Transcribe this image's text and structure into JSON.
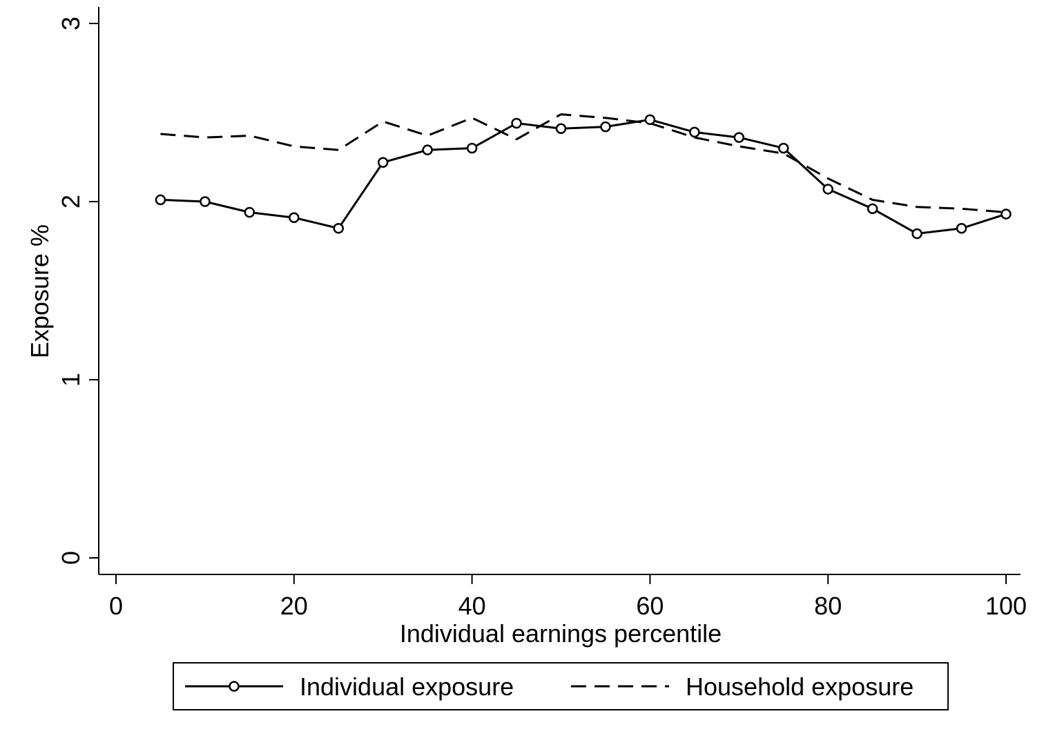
{
  "chart_data": {
    "type": "line",
    "title": "",
    "xlabel": "Individual earnings percentile",
    "ylabel": "Exposure %",
    "xlim": [
      0,
      100
    ],
    "ylim": [
      0,
      3
    ],
    "xticks": [
      0,
      20,
      40,
      60,
      80,
      100
    ],
    "yticks": [
      0,
      1,
      2,
      3
    ],
    "x": [
      5,
      10,
      15,
      20,
      25,
      30,
      35,
      40,
      45,
      50,
      55,
      60,
      65,
      70,
      75,
      80,
      85,
      90,
      95,
      100
    ],
    "series": [
      {
        "name": "Individual exposure",
        "style": "solid-hollow-circle",
        "values": [
          2.01,
          2.0,
          1.94,
          1.91,
          1.85,
          2.22,
          2.29,
          2.3,
          2.44,
          2.41,
          2.42,
          2.46,
          2.39,
          2.36,
          2.3,
          2.07,
          1.96,
          1.82,
          1.85,
          1.93
        ]
      },
      {
        "name": "Household exposure",
        "style": "dashed",
        "values": [
          2.38,
          2.36,
          2.37,
          2.31,
          2.29,
          2.45,
          2.37,
          2.47,
          2.35,
          2.49,
          2.47,
          2.44,
          2.36,
          2.31,
          2.27,
          2.13,
          2.01,
          1.97,
          1.96,
          1.94
        ]
      }
    ],
    "grid": false,
    "legend_position": "bottom",
    "colors": {
      "line": "#000000",
      "background": "#ffffff"
    }
  }
}
